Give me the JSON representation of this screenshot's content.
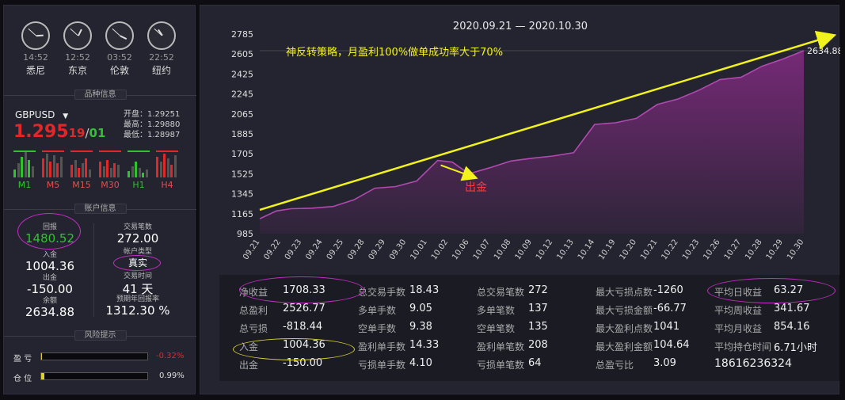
{
  "clocks": [
    {
      "time": "14:52",
      "city": "悉尼",
      "h": 14,
      "m": 52
    },
    {
      "time": "12:52",
      "city": "东京",
      "h": 12,
      "m": 52
    },
    {
      "time": "03:52",
      "city": "伦敦",
      "h": 3,
      "m": 52
    },
    {
      "time": "22:52",
      "city": "纽约",
      "h": 22,
      "m": 52
    }
  ],
  "product": {
    "section_title": "品种信息",
    "symbol": "GBPUSD",
    "price_main": "1.295",
    "price_sub_a": "19",
    "price_sep": "/",
    "price_sub_b": "01",
    "open": "开盘：1.29251",
    "high": "最高：1.29880",
    "low": "最低：1.28987",
    "timeframes": [
      "M1",
      "M5",
      "M15",
      "M30",
      "H1",
      "H4"
    ]
  },
  "account": {
    "section_title": "账户信息",
    "return_label": "回报",
    "return_value": "1480.52",
    "trades_label": "交易笔数",
    "trades_value": "272.00",
    "deposit_label": "入金",
    "deposit_value": "1004.36",
    "type_label": "帐户类型",
    "type_value": "真实",
    "withdraw_label": "出金",
    "withdraw_value": "-150.00",
    "time_label": "交易时间",
    "time_value": "41 天",
    "balance_label": "余额",
    "balance_value": "2634.88",
    "annual_label": "预期年回报率",
    "annual_value": "1312.30 %"
  },
  "risk": {
    "section_title": "风险提示",
    "pl_label": "盈 亏",
    "pl_value": "-0.32%",
    "pl_fraction": 0.0032,
    "pos_label": "仓 位",
    "pos_value": "0.99%",
    "pos_fraction": 0.0099
  },
  "chart_data": {
    "type": "area",
    "title": "2020.09.21 — 2020.10.30",
    "annotation_strategy": "神反转策略，月盈利100%做单成功率大于70%",
    "annotation_withdraw": "出金",
    "end_label": "2634.88",
    "ylim": [
      985,
      2785
    ],
    "yticks": [
      985,
      1165,
      1345,
      1525,
      1705,
      1885,
      2065,
      2245,
      2425,
      2605,
      2785
    ],
    "categories": [
      "09.21",
      "09.22",
      "09.23",
      "09.24",
      "09.25",
      "09.28",
      "09.29",
      "09.30",
      "10.01",
      "10.02",
      "10.06",
      "10.07",
      "10.08",
      "10.09",
      "10.12",
      "10.13",
      "10.14",
      "10.19",
      "10.20",
      "10.21",
      "10.22",
      "10.23",
      "10.26",
      "10.27",
      "10.28",
      "10.29",
      "10.30"
    ],
    "curve": [
      [
        0,
        1120
      ],
      [
        0.8,
        1190
      ],
      [
        1.5,
        1210
      ],
      [
        2.5,
        1215
      ],
      [
        3.5,
        1230
      ],
      [
        4.5,
        1290
      ],
      [
        5.5,
        1395
      ],
      [
        6.5,
        1410
      ],
      [
        7.5,
        1460
      ],
      [
        8.5,
        1645
      ],
      [
        9.2,
        1630
      ],
      [
        10,
        1525
      ],
      [
        11,
        1580
      ],
      [
        12,
        1640
      ],
      [
        13,
        1665
      ],
      [
        14,
        1685
      ],
      [
        15,
        1715
      ],
      [
        16,
        1970
      ],
      [
        17,
        1985
      ],
      [
        18,
        2025
      ],
      [
        19,
        2150
      ],
      [
        20,
        2200
      ],
      [
        21,
        2280
      ],
      [
        22,
        2375
      ],
      [
        23,
        2395
      ],
      [
        24,
        2495
      ],
      [
        25,
        2560
      ],
      [
        26,
        2634.88
      ]
    ],
    "trend_line": [
      [
        0,
        1200
      ],
      [
        27.2,
        2760
      ]
    ]
  },
  "stats": {
    "col1": [
      {
        "label": "净收益",
        "value": "1708.33"
      },
      {
        "label": "总盈利",
        "value": "2526.77"
      },
      {
        "label": "总亏损",
        "value": "-818.44"
      },
      {
        "label": "入金",
        "value": "1004.36"
      },
      {
        "label": "出金",
        "value": "-150.00"
      }
    ],
    "col2": [
      {
        "label": "总交易手数",
        "value": "18.43"
      },
      {
        "label": "多单手数",
        "value": "9.05"
      },
      {
        "label": "空单手数",
        "value": "9.38"
      },
      {
        "label": "盈利单手数",
        "value": "14.33"
      },
      {
        "label": "亏损单手数",
        "value": "4.10"
      }
    ],
    "col3": [
      {
        "label": "总交易笔数",
        "value": "272"
      },
      {
        "label": "多单笔数",
        "value": "137"
      },
      {
        "label": "空单笔数",
        "value": "135"
      },
      {
        "label": "盈利单笔数",
        "value": "208"
      },
      {
        "label": "亏损单笔数",
        "value": "64"
      }
    ],
    "col4": [
      {
        "label": "最大亏损点数",
        "value": "-1260"
      },
      {
        "label": "最大亏损金额",
        "value": "-66.77"
      },
      {
        "label": "最大盈利点数",
        "value": "1041"
      },
      {
        "label": "最大盈利金额",
        "value": "104.64"
      },
      {
        "label": "总盈亏比",
        "value": "3.09"
      }
    ],
    "col5": [
      {
        "label": "平均日收益",
        "value": "63.27"
      },
      {
        "label": "平均周收益",
        "value": "341.67"
      },
      {
        "label": "平均月收益",
        "value": "854.16"
      },
      {
        "label": "平均持仓时间",
        "value": "6.71小时"
      }
    ],
    "phone": "18616236324"
  },
  "colors": {
    "area": "#7a2a7a",
    "line": "#b04ab0",
    "trend": "#f2f21c",
    "up": "#2ec42e",
    "down": "#e02828",
    "highlight": "#c42ec4"
  }
}
